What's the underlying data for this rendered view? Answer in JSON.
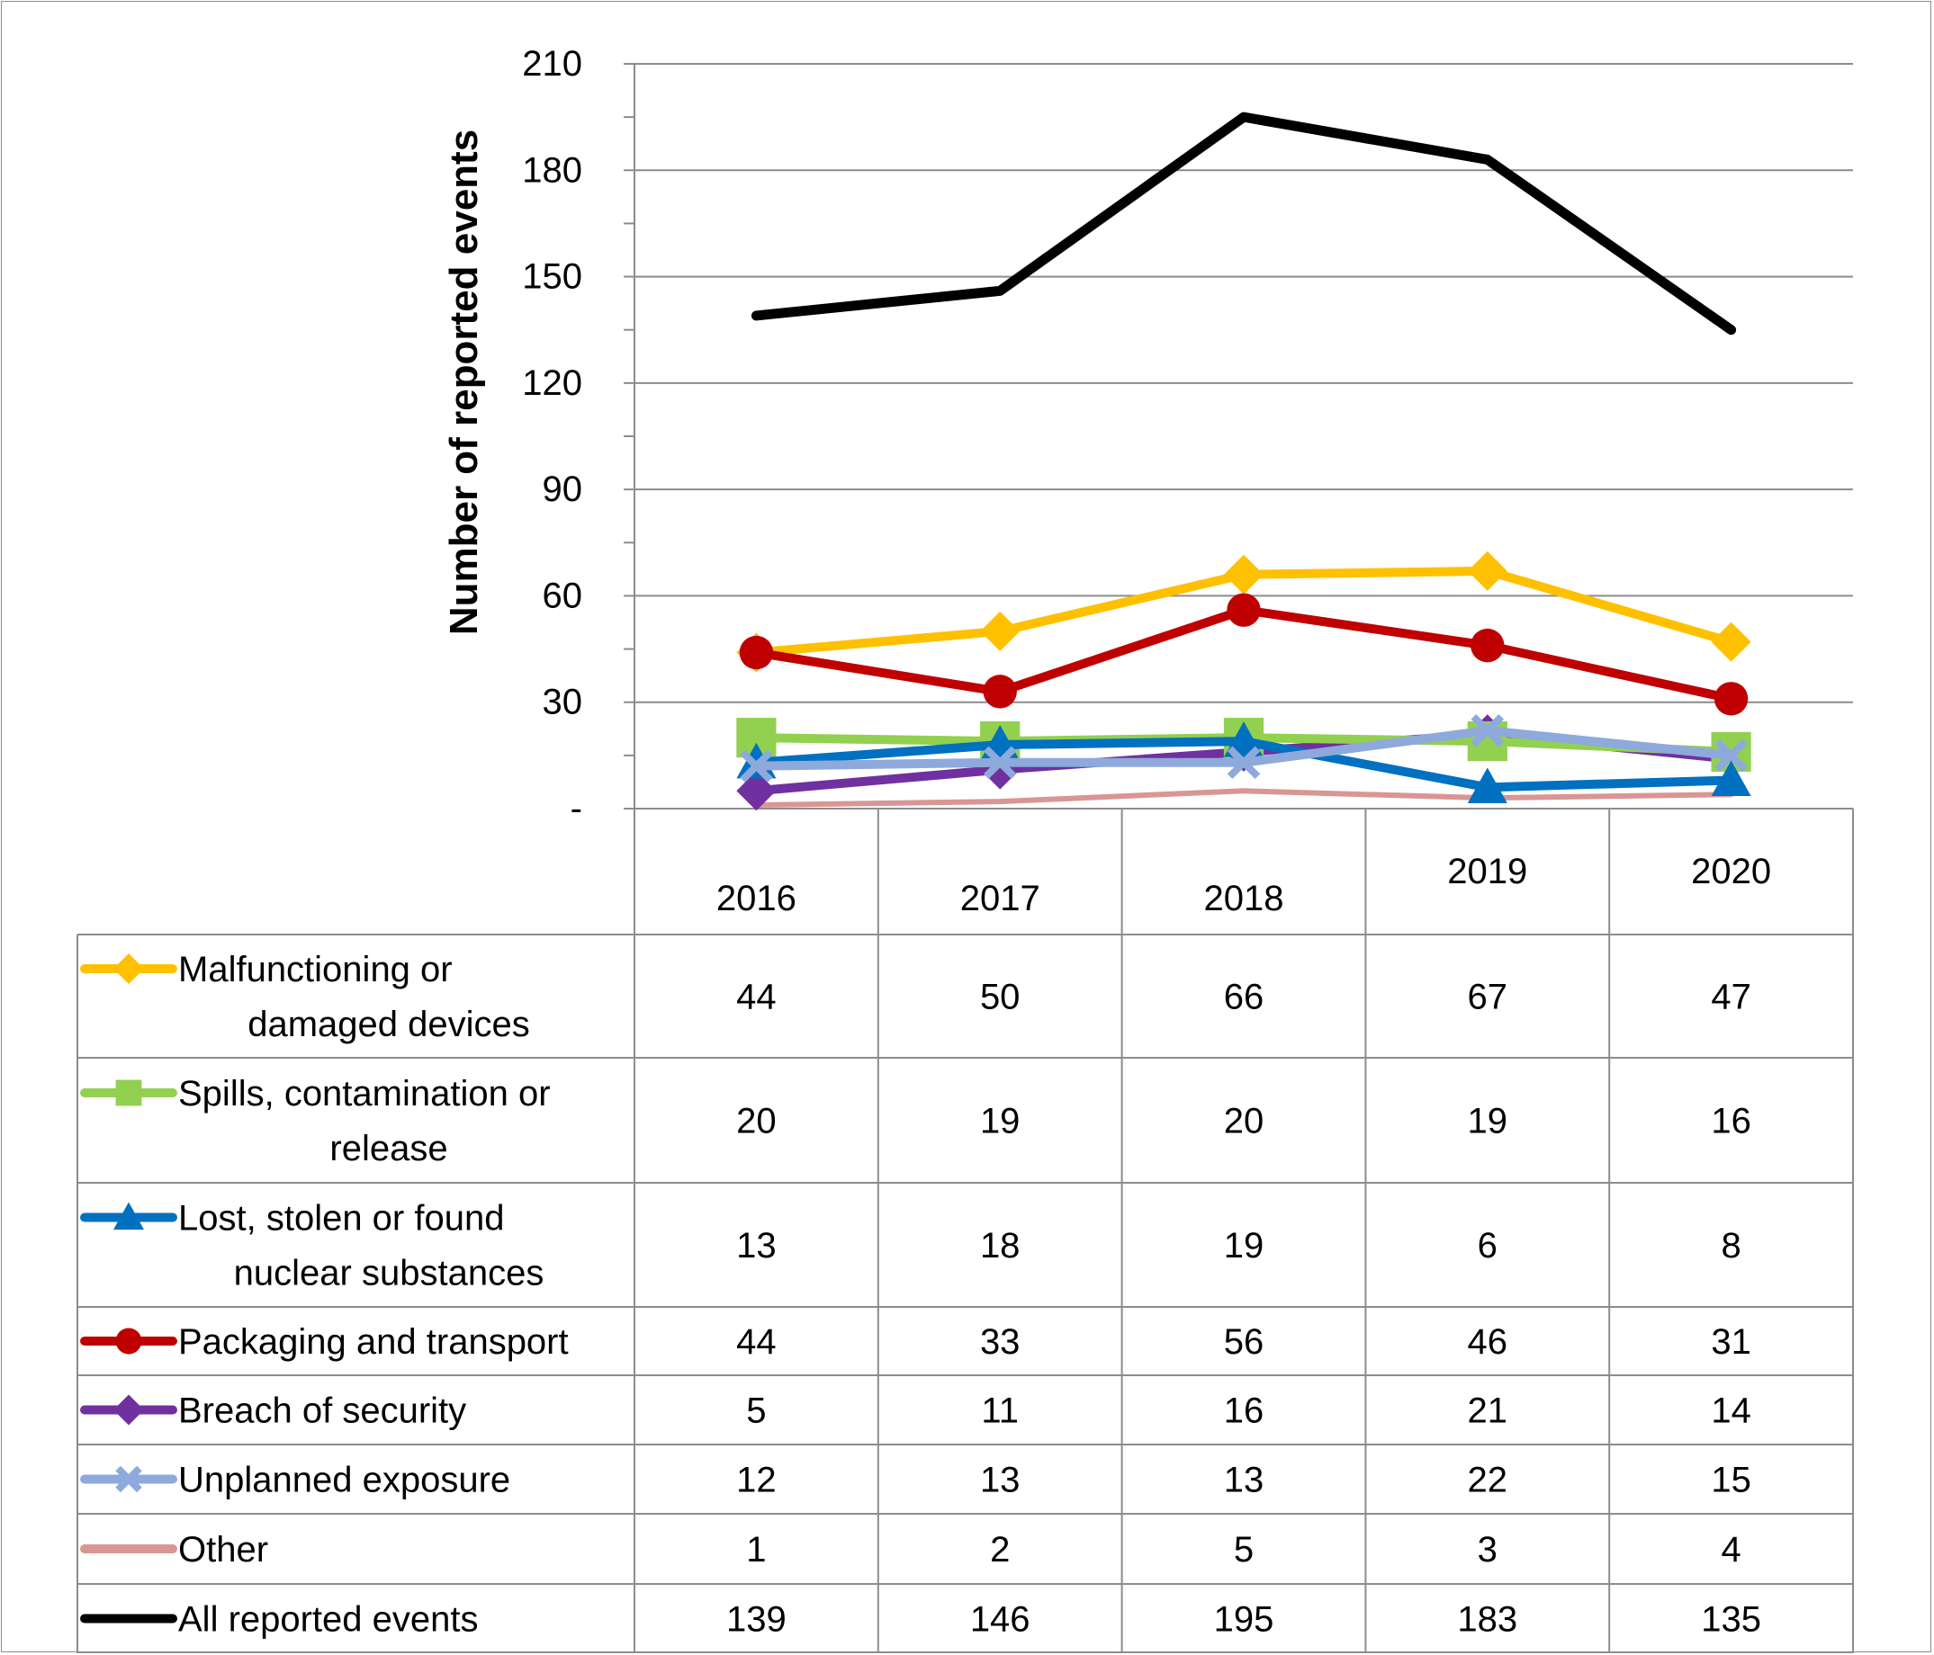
{
  "chart_data": {
    "type": "line",
    "title": "",
    "xlabel": "",
    "ylabel": "Number of reported events",
    "ylim": [
      0,
      210
    ],
    "yticks": [
      {
        "value": 0,
        "label": "-"
      },
      {
        "value": 30,
        "label": "30"
      },
      {
        "value": 60,
        "label": "60"
      },
      {
        "value": 90,
        "label": "90"
      },
      {
        "value": 120,
        "label": "120"
      },
      {
        "value": 150,
        "label": "150"
      },
      {
        "value": 180,
        "label": "180"
      },
      {
        "value": 210,
        "label": "210"
      }
    ],
    "grid": true,
    "legend": "data table below chart",
    "categories": [
      "2016",
      "2017",
      "2018",
      "2019",
      "2020"
    ],
    "series": [
      {
        "name": "Malfunctioning or damaged devices",
        "name_lines": [
          "Malfunctioning or",
          "damaged devices"
        ],
        "color": "#FFC000",
        "marker": "diamond",
        "values": [
          44,
          50,
          66,
          67,
          47
        ]
      },
      {
        "name": "Spills, contamination or release",
        "name_lines": [
          "Spills, contamination or",
          "release"
        ],
        "color": "#92D050",
        "marker": "square",
        "values": [
          20,
          19,
          20,
          19,
          16
        ]
      },
      {
        "name": "Lost, stolen or found nuclear substances",
        "name_lines": [
          "Lost, stolen or found",
          "nuclear substances"
        ],
        "color": "#0070C0",
        "marker": "triangle",
        "values": [
          13,
          18,
          19,
          6,
          8
        ]
      },
      {
        "name": "Packaging and transport",
        "name_lines": [
          "Packaging and transport"
        ],
        "color": "#C00000",
        "marker": "circle",
        "values": [
          44,
          33,
          56,
          46,
          31
        ]
      },
      {
        "name": "Breach of security",
        "name_lines": [
          "Breach of security"
        ],
        "color": "#7030A0",
        "marker": "diamond",
        "values": [
          5,
          11,
          16,
          21,
          14
        ]
      },
      {
        "name": "Unplanned exposure",
        "name_lines": [
          "Unplanned exposure"
        ],
        "color": "#8EA9DB",
        "marker": "x",
        "values": [
          12,
          13,
          13,
          22,
          15
        ]
      },
      {
        "name": "Other",
        "name_lines": [
          "Other"
        ],
        "color": "#D99694",
        "marker": "none",
        "values": [
          1,
          2,
          5,
          3,
          4
        ]
      },
      {
        "name": "All reported events",
        "name_lines": [
          "All reported events"
        ],
        "color": "#000000",
        "marker": "none",
        "values": [
          139,
          146,
          195,
          183,
          135
        ]
      }
    ]
  }
}
